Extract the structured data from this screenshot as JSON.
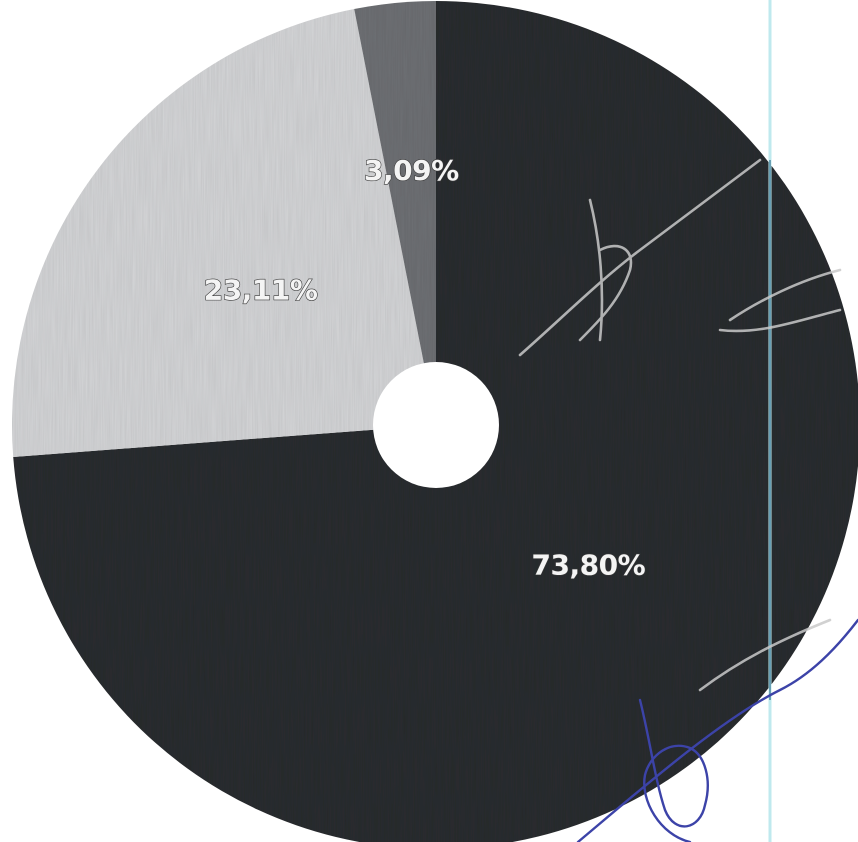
{
  "chart_data": {
    "type": "pie",
    "donut": true,
    "title": "",
    "slices": [
      {
        "label": "73,80%",
        "value": 73.8,
        "color": "#2a2c2f"
      },
      {
        "label": "23,11%",
        "value": 23.11,
        "color": "#d4d5d7"
      },
      {
        "label": "3,09%",
        "value": 3.09,
        "color": "#6e7074"
      }
    ],
    "legend": "none",
    "start": "top-clockwise"
  },
  "colors": {
    "background": "#ffffff",
    "hole": "#ffffff",
    "scan_line_cyan": "#bfe9ee",
    "scan_line_blue": "#2f6f8f",
    "ink_blue": "#3c43a8"
  }
}
